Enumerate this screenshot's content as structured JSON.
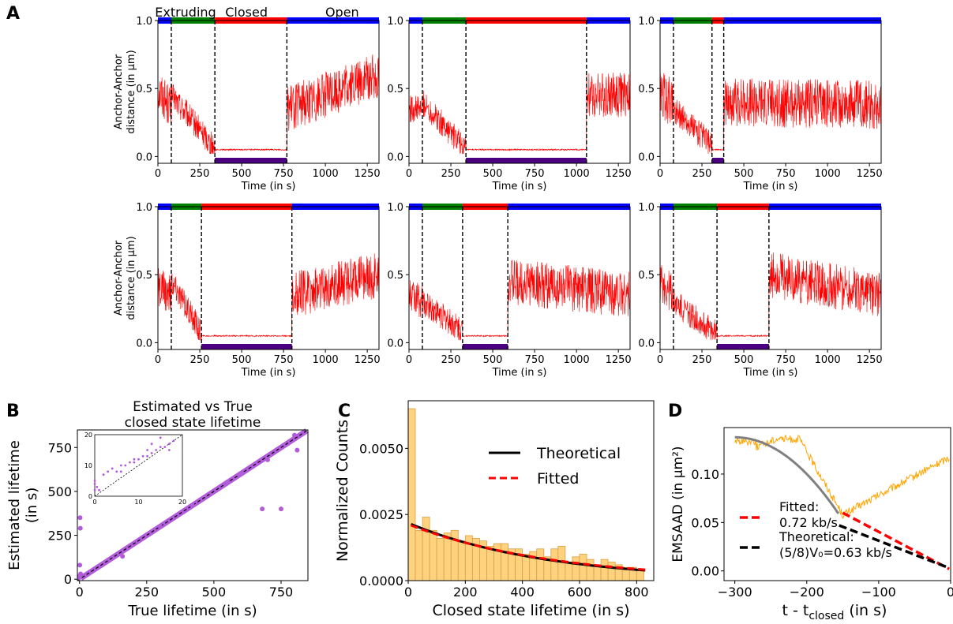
{
  "panel_labels": [
    "A",
    "B",
    "C",
    "D"
  ],
  "colors": {
    "extruding": "#008000",
    "closed": "#ff0000",
    "open": "#0000ff",
    "closed_bar_bottom": "#4b0082",
    "trace": "#ff0000",
    "scatter": "#b25cdc",
    "hist_fill": "#ffd27f",
    "hist_edge": "#d9a040",
    "emsaad_trace": "#ffa500",
    "emsaad_fit_curve": "#808080"
  },
  "chart_data": [
    {
      "id": "A1",
      "type": "line",
      "xlabel": "Time (in s)",
      "ylabel_lines": [
        "Anchor-Anchor",
        "distance (in μm)"
      ],
      "xlim": [
        0,
        1320
      ],
      "ylim": [
        -0.05,
        1.0
      ],
      "xticks": [
        0,
        250,
        500,
        750,
        1000,
        1250
      ],
      "yticks": [
        0.0,
        0.5,
        1.0
      ],
      "state_labels": [
        "Extruding",
        "Closed",
        "Open"
      ],
      "states": {
        "extruding": [
          80,
          340
        ],
        "closed": [
          340,
          770
        ],
        "open": [
          770,
          1320
        ]
      },
      "segments": [
        {
          "from": 0,
          "to": 80,
          "start": 0.5,
          "end": 0.35,
          "noise": 0.16
        },
        {
          "from": 80,
          "to": 340,
          "start": 0.45,
          "end": 0.06,
          "noise": 0.1
        },
        {
          "from": 340,
          "to": 770,
          "start": 0.05,
          "end": 0.05,
          "noise": 0.005
        },
        {
          "from": 770,
          "to": 1320,
          "start": 0.35,
          "end": 0.6,
          "noise": 0.17
        }
      ]
    },
    {
      "id": "A2",
      "type": "line",
      "xlabel": "Time (in s)",
      "xlim": [
        0,
        1320
      ],
      "ylim": [
        -0.05,
        1.0
      ],
      "xticks": [
        0,
        250,
        500,
        750,
        1000,
        1250
      ],
      "yticks": [
        0.0,
        0.5,
        1.0
      ],
      "states": {
        "extruding": [
          80,
          340
        ],
        "closed": [
          340,
          1060
        ],
        "open": [
          1060,
          1320
        ]
      },
      "segments": [
        {
          "from": 0,
          "to": 80,
          "start": 0.35,
          "end": 0.35,
          "noise": 0.1
        },
        {
          "from": 80,
          "to": 340,
          "start": 0.4,
          "end": 0.05,
          "noise": 0.1
        },
        {
          "from": 340,
          "to": 1060,
          "start": 0.05,
          "end": 0.05,
          "noise": 0.005
        },
        {
          "from": 1060,
          "to": 1320,
          "start": 0.45,
          "end": 0.45,
          "noise": 0.17
        }
      ]
    },
    {
      "id": "A3",
      "type": "line",
      "xlabel": "Time (in s)",
      "xlim": [
        0,
        1320
      ],
      "ylim": [
        -0.05,
        1.0
      ],
      "xticks": [
        0,
        250,
        500,
        750,
        1000,
        1250
      ],
      "yticks": [
        0.0,
        0.5,
        1.0
      ],
      "states": {
        "extruding": [
          80,
          310
        ],
        "closed": [
          310,
          380
        ],
        "open": [
          380,
          1320
        ]
      },
      "segments": [
        {
          "from": 0,
          "to": 80,
          "start": 0.45,
          "end": 0.4,
          "noise": 0.18
        },
        {
          "from": 80,
          "to": 310,
          "start": 0.35,
          "end": 0.08,
          "noise": 0.1
        },
        {
          "from": 310,
          "to": 380,
          "start": 0.05,
          "end": 0.05,
          "noise": 0.005
        },
        {
          "from": 380,
          "to": 1320,
          "start": 0.4,
          "end": 0.38,
          "noise": 0.18
        }
      ]
    },
    {
      "id": "A4",
      "type": "line",
      "xlabel": "Time (in s)",
      "ylabel_lines": [
        "Anchor-Anchor",
        "distance (in μm)"
      ],
      "xlim": [
        0,
        1320
      ],
      "ylim": [
        -0.05,
        1.0
      ],
      "xticks": [
        0,
        250,
        500,
        750,
        1000,
        1250
      ],
      "yticks": [
        0.0,
        0.5,
        1.0
      ],
      "states": {
        "extruding": [
          80,
          260
        ],
        "closed": [
          260,
          800
        ],
        "open": [
          800,
          1320
        ]
      },
      "segments": [
        {
          "from": 0,
          "to": 80,
          "start": 0.4,
          "end": 0.35,
          "noise": 0.15
        },
        {
          "from": 80,
          "to": 260,
          "start": 0.45,
          "end": 0.07,
          "noise": 0.1
        },
        {
          "from": 260,
          "to": 800,
          "start": 0.05,
          "end": 0.05,
          "noise": 0.005
        },
        {
          "from": 800,
          "to": 1320,
          "start": 0.35,
          "end": 0.5,
          "noise": 0.17
        }
      ]
    },
    {
      "id": "A5",
      "type": "line",
      "xlabel": "Time (in s)",
      "xlim": [
        0,
        1320
      ],
      "ylim": [
        -0.05,
        1.0
      ],
      "xticks": [
        0,
        250,
        500,
        750,
        1000,
        1250
      ],
      "yticks": [
        0.0,
        0.5,
        1.0
      ],
      "states": {
        "extruding": [
          80,
          320
        ],
        "closed": [
          320,
          590
        ],
        "open": [
          590,
          1320
        ]
      },
      "segments": [
        {
          "from": 0,
          "to": 80,
          "start": 0.35,
          "end": 0.3,
          "noise": 0.13
        },
        {
          "from": 80,
          "to": 320,
          "start": 0.3,
          "end": 0.08,
          "noise": 0.1
        },
        {
          "from": 320,
          "to": 590,
          "start": 0.05,
          "end": 0.05,
          "noise": 0.005
        },
        {
          "from": 590,
          "to": 1320,
          "start": 0.45,
          "end": 0.35,
          "noise": 0.17
        }
      ]
    },
    {
      "id": "A6",
      "type": "line",
      "xlabel": "Time (in s)",
      "xlim": [
        0,
        1320
      ],
      "ylim": [
        -0.05,
        1.0
      ],
      "xticks": [
        0,
        250,
        500,
        750,
        1000,
        1250
      ],
      "yticks": [
        0.0,
        0.5,
        1.0
      ],
      "states": {
        "extruding": [
          80,
          340
        ],
        "closed": [
          340,
          650
        ],
        "open": [
          650,
          1320
        ]
      },
      "segments": [
        {
          "from": 0,
          "to": 80,
          "start": 0.45,
          "end": 0.35,
          "noise": 0.15
        },
        {
          "from": 80,
          "to": 340,
          "start": 0.3,
          "end": 0.06,
          "noise": 0.1
        },
        {
          "from": 340,
          "to": 650,
          "start": 0.05,
          "end": 0.05,
          "noise": 0.005
        },
        {
          "from": 650,
          "to": 1320,
          "start": 0.5,
          "end": 0.35,
          "noise": 0.17
        }
      ]
    },
    {
      "id": "B",
      "type": "scatter",
      "title_lines": [
        "Estimated vs True",
        "closed state lifetime"
      ],
      "xlabel": "True lifetime (in s)",
      "ylabel_lines": [
        "Estimated lifetime",
        "(in s)"
      ],
      "xlim": [
        -8,
        850
      ],
      "ylim": [
        -8,
        850
      ],
      "xticks": [
        0,
        250,
        500,
        750
      ],
      "yticks": [
        0,
        250,
        500,
        750
      ],
      "diagonal_dense_range": [
        5,
        845
      ],
      "points": [
        [
          0,
          10
        ],
        [
          2,
          350
        ],
        [
          3,
          290
        ],
        [
          1,
          80
        ],
        [
          0,
          20
        ],
        [
          4,
          30
        ],
        [
          160,
          130
        ],
        [
          680,
          400
        ],
        [
          750,
          400
        ],
        [
          810,
          735
        ],
        [
          800,
          820
        ],
        [
          700,
          680
        ],
        [
          420,
          420
        ],
        [
          300,
          300
        ],
        [
          550,
          550
        ],
        [
          600,
          600
        ]
      ],
      "inset": {
        "xlim": [
          0,
          20
        ],
        "ylim": [
          0,
          20
        ],
        "xticks": [
          0,
          10,
          20
        ],
        "yticks": [
          0,
          10,
          20
        ],
        "points": [
          [
            0,
            2
          ],
          [
            0,
            4
          ],
          [
            0,
            5
          ],
          [
            0.5,
            3
          ],
          [
            1,
            2
          ],
          [
            2,
            7
          ],
          [
            3,
            8
          ],
          [
            4,
            9
          ],
          [
            5,
            8
          ],
          [
            6,
            10
          ],
          [
            7,
            10
          ],
          [
            8,
            11
          ],
          [
            9,
            12
          ],
          [
            10,
            12
          ],
          [
            11,
            13
          ],
          [
            12,
            13
          ],
          [
            13,
            14
          ],
          [
            14,
            15
          ],
          [
            15,
            16
          ],
          [
            16,
            16
          ],
          [
            17,
            17
          ],
          [
            18,
            18
          ],
          [
            15,
            19
          ],
          [
            13,
            17
          ],
          [
            12,
            15
          ],
          [
            9,
            11
          ],
          [
            6,
            8
          ],
          [
            17,
            15
          ]
        ]
      }
    },
    {
      "id": "C",
      "type": "bar",
      "xlabel": "Closed state lifetime (in s)",
      "ylabel": "Normalized Counts",
      "xlim": [
        0,
        860
      ],
      "ylim": [
        0,
        0.0068
      ],
      "xticks": [
        0,
        200,
        400,
        600,
        800
      ],
      "yticks": [
        0.0,
        0.0025,
        0.005
      ],
      "ytick_labels": [
        "0.0000",
        "0.0025",
        "0.0050"
      ],
      "bin_width": 25,
      "values": [
        0.0065,
        0.0019,
        0.0024,
        0.0019,
        0.0016,
        0.0018,
        0.0019,
        0.0015,
        0.0017,
        0.0016,
        0.0015,
        0.0013,
        0.0014,
        0.0014,
        0.0012,
        0.0012,
        0.001,
        0.0011,
        0.0012,
        0.0009,
        0.0012,
        0.0013,
        0.0007,
        0.0009,
        0.001,
        0.0008,
        0.0006,
        0.0008,
        0.0007,
        0.0006,
        0.0005,
        0.0005,
        0.0004
      ],
      "series": [
        {
          "name": "Theoretical",
          "style": "solid",
          "color": "#000000",
          "a": 0.00218,
          "k": 0.00208
        },
        {
          "name": "Fitted",
          "style": "dashed",
          "color": "#ff0000",
          "a": 0.00213,
          "k": 0.00198
        }
      ],
      "x_range": [
        10,
        830
      ]
    },
    {
      "id": "D",
      "type": "line",
      "xlabel": "t - t",
      "xlabel_sub": "closed",
      "xlabel_suffix": " (in s)",
      "ylabel": "EMSAAD (in μm²)",
      "xlim": [
        -315,
        0
      ],
      "ylim": [
        -0.01,
        0.148
      ],
      "xticks": [
        -300,
        -200,
        -100,
        0
      ],
      "yticks": [
        0.0,
        0.05,
        0.1
      ],
      "ytick_labels": [
        "0.00",
        "0.05",
        "0.10"
      ],
      "series": [
        {
          "name": "Fitted:",
          "name2": "0.72 kb/s",
          "style": "dashed",
          "color": "#ff0000",
          "x": [
            -150,
            -2
          ],
          "y": [
            0.06,
            0.002
          ]
        },
        {
          "name": "Theoretical:",
          "name2": "(5/8)V₀=0.63 kb/s",
          "style": "dashed",
          "color": "#000000",
          "x": [
            -155,
            -2
          ],
          "y": [
            0.047,
            0.003
          ]
        }
      ],
      "orange_trace": {
        "from": -300,
        "to": -2
      },
      "gray_curve": {
        "from": -300,
        "to": -155
      }
    }
  ]
}
